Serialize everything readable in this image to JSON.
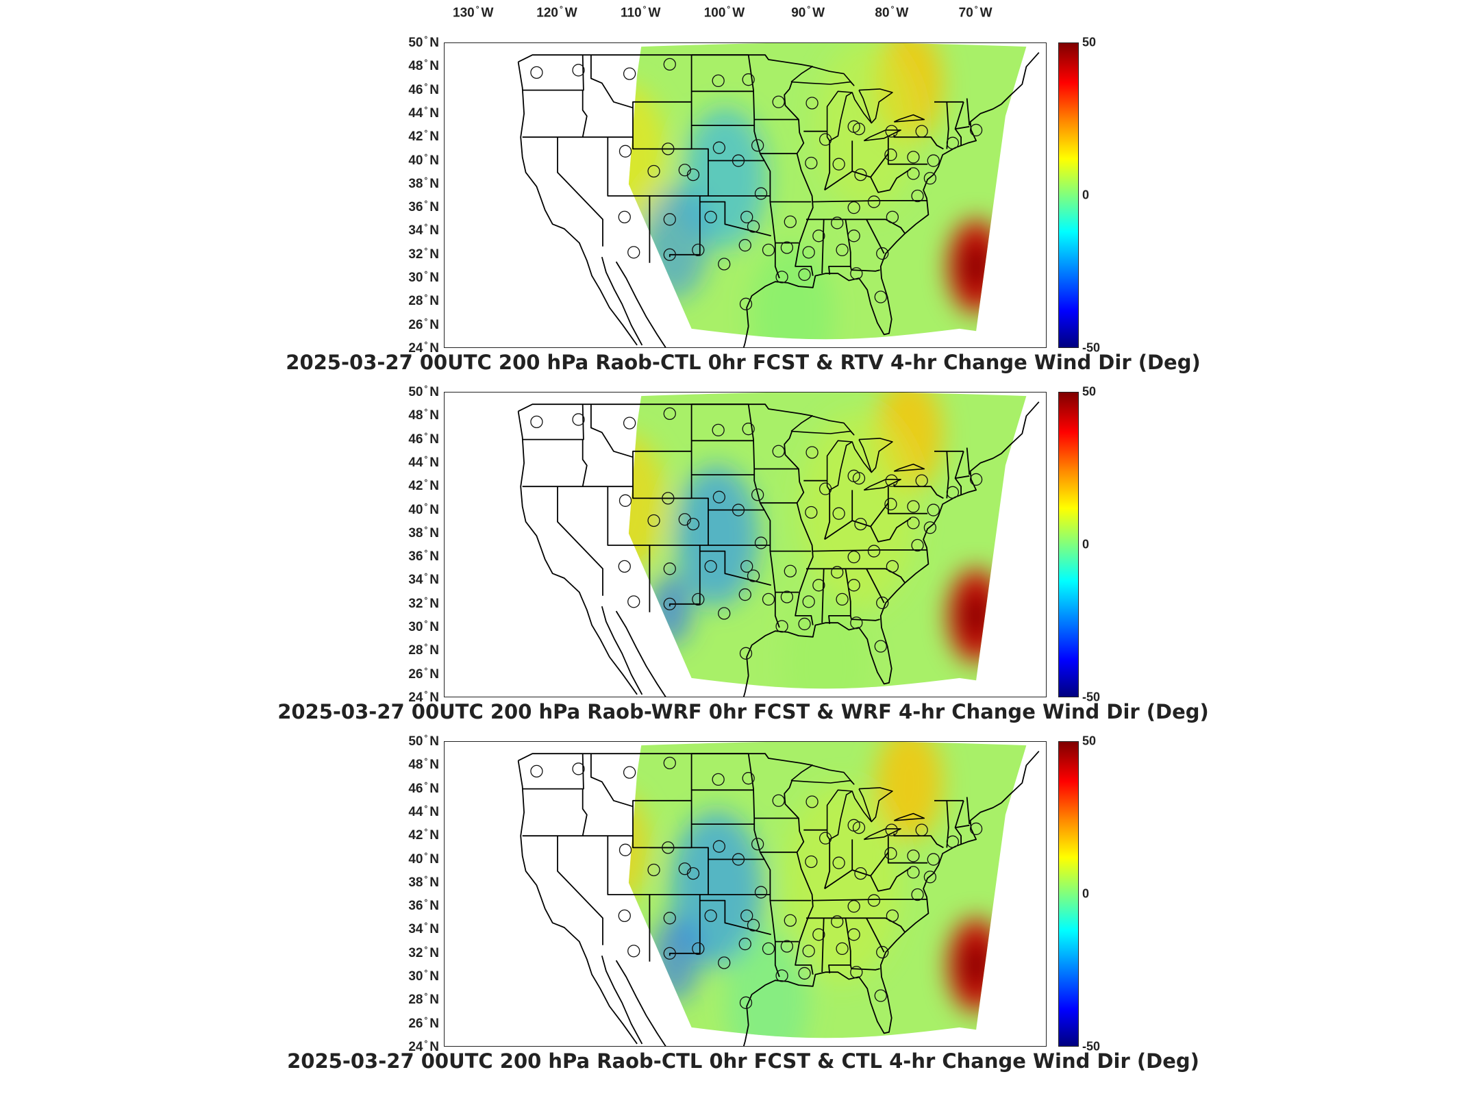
{
  "lon_labels": [
    {
      "lon": -130,
      "num": "130",
      "hem": "W"
    },
    {
      "lon": -120,
      "num": "120",
      "hem": "W"
    },
    {
      "lon": -110,
      "num": "110",
      "hem": "W"
    },
    {
      "lon": -100,
      "num": "100",
      "hem": "W"
    },
    {
      "lon": -90,
      "num": "90",
      "hem": "W"
    },
    {
      "lon": -80,
      "num": "80",
      "hem": "W"
    },
    {
      "lon": -70,
      "num": "70",
      "hem": "W"
    }
  ],
  "lat_labels": [
    {
      "lat": 50,
      "num": "50",
      "hem": "N"
    },
    {
      "lat": 48,
      "num": "48",
      "hem": "N"
    },
    {
      "lat": 46,
      "num": "46",
      "hem": "N"
    },
    {
      "lat": 44,
      "num": "44",
      "hem": "N"
    },
    {
      "lat": 42,
      "num": "42",
      "hem": "N"
    },
    {
      "lat": 40,
      "num": "40",
      "hem": "N"
    },
    {
      "lat": 38,
      "num": "38",
      "hem": "N"
    },
    {
      "lat": 36,
      "num": "36",
      "hem": "N"
    },
    {
      "lat": 34,
      "num": "34",
      "hem": "N"
    },
    {
      "lat": 32,
      "num": "32",
      "hem": "N"
    },
    {
      "lat": 30,
      "num": "30",
      "hem": "N"
    },
    {
      "lat": 28,
      "num": "28",
      "hem": "N"
    },
    {
      "lat": 26,
      "num": "26",
      "hem": "N"
    },
    {
      "lat": 24,
      "num": "24",
      "hem": "N"
    }
  ],
  "colorbar": {
    "max": "50",
    "mid": "0",
    "min": "-50"
  },
  "panels": [
    {
      "title": "2025-03-27 00UTC 200 hPa Raob-CTL 0hr FCST & RTV 4-hr Change Wind Dir (Deg)",
      "variant": "rtv"
    },
    {
      "title": "2025-03-27 00UTC 200 hPa Raob-WRF 0hr FCST & WRF 4-hr Change Wind Dir (Deg)",
      "variant": "wrf"
    },
    {
      "title": "2025-03-27 00UTC 200 hPa Raob-CTL 0hr FCST & CTL 4-hr Change Wind Dir (Deg)",
      "variant": "ctl"
    }
  ],
  "raob_stations": [
    [
      -122.5,
      47.5
    ],
    [
      -117.5,
      47.7
    ],
    [
      -111.4,
      47.4
    ],
    [
      -106.6,
      48.2
    ],
    [
      -100.8,
      46.8
    ],
    [
      -97.2,
      46.9
    ],
    [
      -93.6,
      45.0
    ],
    [
      -89.6,
      44.9
    ],
    [
      -84.0,
      42.7
    ],
    [
      -80.1,
      42.5
    ],
    [
      -76.5,
      42.5
    ],
    [
      -72.8,
      41.5
    ],
    [
      -70.0,
      42.6
    ],
    [
      -88.0,
      41.8
    ],
    [
      -86.4,
      39.7
    ],
    [
      -83.8,
      38.8
    ],
    [
      -80.2,
      40.5
    ],
    [
      -77.5,
      38.9
    ],
    [
      -75.5,
      38.5
    ],
    [
      -77.0,
      37.0
    ],
    [
      -80.0,
      35.2
    ],
    [
      -84.6,
      36.0
    ],
    [
      -82.2,
      36.5
    ],
    [
      -86.6,
      34.7
    ],
    [
      -84.6,
      33.6
    ],
    [
      -81.2,
      32.1
    ],
    [
      -90.0,
      32.2
    ],
    [
      -92.2,
      34.8
    ],
    [
      -95.7,
      37.2
    ],
    [
      -97.4,
      35.2
    ],
    [
      -101.7,
      35.2
    ],
    [
      -103.2,
      32.4
    ],
    [
      -106.6,
      32.0
    ],
    [
      -97.6,
      32.8
    ],
    [
      -100.1,
      31.2
    ],
    [
      -103.8,
      38.8
    ],
    [
      -104.8,
      39.2
    ],
    [
      -98.4,
      40.0
    ],
    [
      -96.1,
      41.3
    ],
    [
      -100.7,
      41.1
    ],
    [
      -108.5,
      39.1
    ],
    [
      -106.8,
      41.0
    ],
    [
      -111.9,
      40.8
    ],
    [
      -112.0,
      35.2
    ],
    [
      -110.9,
      32.2
    ],
    [
      -106.6,
      35.0
    ],
    [
      -93.2,
      30.1
    ],
    [
      -90.5,
      30.3
    ],
    [
      -97.5,
      27.8
    ],
    [
      -81.4,
      28.4
    ],
    [
      -84.3,
      30.4
    ],
    [
      -86.0,
      32.4
    ],
    [
      -88.8,
      33.6
    ],
    [
      -92.6,
      32.6
    ],
    [
      -94.8,
      32.4
    ],
    [
      -96.6,
      34.4
    ],
    [
      -89.7,
      39.8
    ],
    [
      -84.6,
      42.9
    ],
    [
      -77.5,
      40.3
    ],
    [
      -75.1,
      40.0
    ]
  ]
}
